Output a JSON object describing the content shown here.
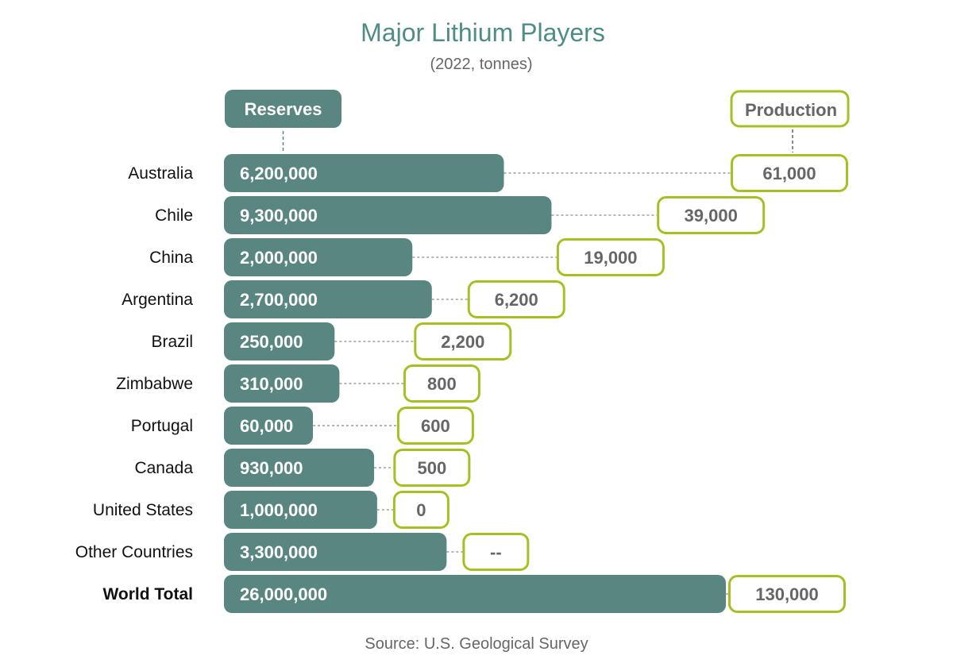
{
  "chart_data": {
    "type": "bar",
    "title": "Major Lithium Players",
    "subtitle": "(2022, tonnes)",
    "source": "Source: U.S. Geological Survey",
    "categories": [
      "Australia",
      "Chile",
      "China",
      "Argentina",
      "Brazil",
      "Zimbabwe",
      "Portugal",
      "Canada",
      "United States",
      "Other Countries",
      "World Total"
    ],
    "series": [
      {
        "name": "Reserves",
        "values": [
          6200000,
          9300000,
          2000000,
          2700000,
          250000,
          310000,
          60000,
          930000,
          1000000,
          3300000,
          26000000
        ],
        "labels": [
          "6,200,000",
          "9,300,000",
          "2,000,000",
          "2,700,000",
          "250,000",
          "310,000",
          "60,000",
          "930,000",
          "1,000,000",
          "3,300,000",
          "26,000,000"
        ]
      },
      {
        "name": "Production",
        "values": [
          61000,
          39000,
          19000,
          6200,
          2200,
          800,
          600,
          500,
          0,
          null,
          130000
        ],
        "labels": [
          "61,000",
          "39,000",
          "19,000",
          "6,200",
          "2,200",
          "800",
          "600",
          "500",
          "0",
          "--",
          "130,000"
        ]
      }
    ],
    "colors": {
      "reserves": "#5a8681",
      "production_border": "#a8bf23",
      "production_text": "#666666",
      "title": "#4f8c85",
      "subtitle": "#666666",
      "category_label": "#111111",
      "leader": "#8a8a8a"
    }
  }
}
